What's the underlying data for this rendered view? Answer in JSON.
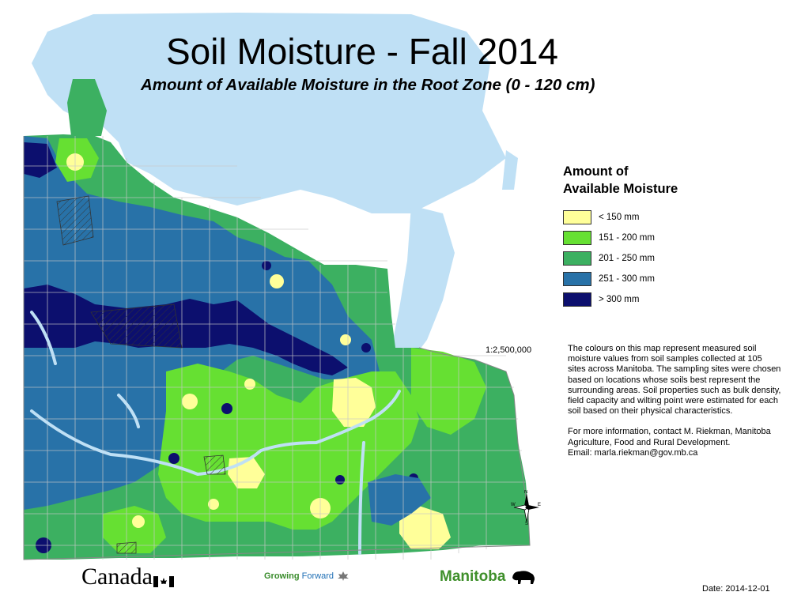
{
  "title": "Soil Moisture - Fall 2014",
  "subtitle": "Amount of Available Moisture in the Root Zone (0 - 120 cm)",
  "legend": {
    "title_line1": "Amount of",
    "title_line2": "Available Moisture",
    "items": [
      {
        "label": "< 150 mm",
        "color": "#ffff99"
      },
      {
        "label": "151 - 200 mm",
        "color": "#66e032"
      },
      {
        "label": "201 - 250 mm",
        "color": "#3cb061"
      },
      {
        "label": "251 - 300 mm",
        "color": "#2872a8"
      },
      {
        "label": "> 300 mm",
        "color": "#0c0f6e"
      }
    ]
  },
  "scale": "1:2,500,000",
  "description": {
    "para1": "The colours on this map represent measured soil moisture values from soil samples collected at 105 sites across Manitoba.  The sampling sites were chosen based on locations whose soils best represent the surrounding areas.  Soil properties such as bulk density, field capacity and wilting point were estimated for each soil based on their physical characteristics.",
    "para2": "For more information, contact M. Riekman, Manitoba Agriculture, Food and Rural Development.",
    "email": "Email: marla.riekman@gov.mb.ca"
  },
  "date": "Date: 2014-12-01",
  "logos": {
    "canada": "Canada",
    "growing_forward_a": "Growing",
    "growing_forward_b": "Forward",
    "manitoba": "Manitoba"
  },
  "compass": {
    "n": "N",
    "s": "S",
    "e": "E",
    "w": "W"
  },
  "colors": {
    "water": "#bfe0f5",
    "boundary": "#c8c8c8"
  }
}
